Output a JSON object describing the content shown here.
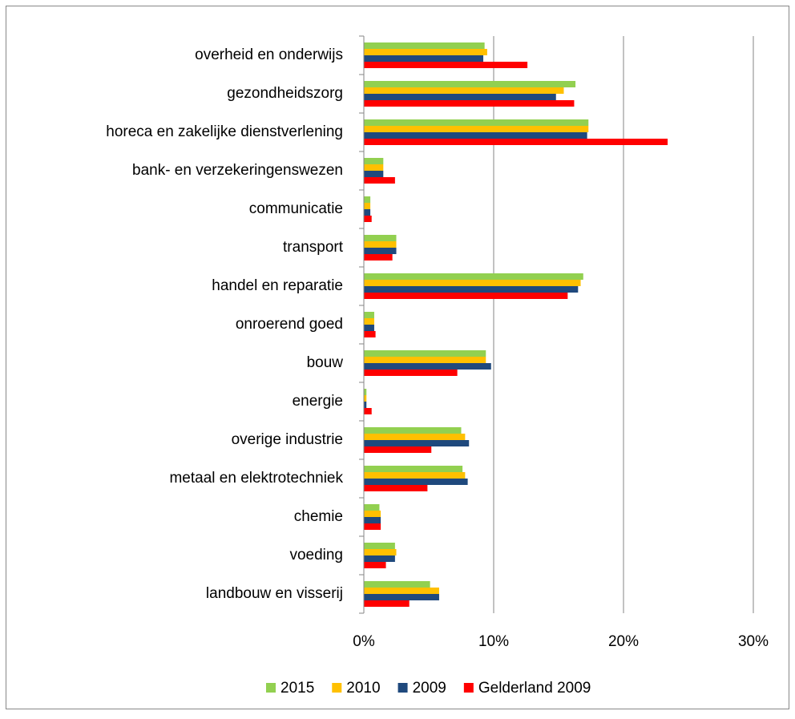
{
  "chart_data": {
    "type": "hbar",
    "categories": [
      "overheid en onderwijs",
      "gezondheidszorg",
      "horeca en zakelijke dienstverlening",
      "bank- en verzekeringenswezen",
      "communicatie",
      "transport",
      "handel en reparatie",
      "onroerend goed",
      "bouw",
      "energie",
      "overige industrie",
      "metaal en elektrotechniek",
      "chemie",
      "voeding",
      "landbouw en visserij"
    ],
    "series": [
      {
        "name": "2015",
        "color": "#92d050",
        "values": [
          9.3,
          16.3,
          17.3,
          1.5,
          0.5,
          2.5,
          16.9,
          0.8,
          9.4,
          0.2,
          7.5,
          7.6,
          1.2,
          2.4,
          5.1
        ]
      },
      {
        "name": "2010",
        "color": "#ffc000",
        "values": [
          9.5,
          15.4,
          17.3,
          1.5,
          0.5,
          2.5,
          16.7,
          0.8,
          9.4,
          0.2,
          7.8,
          7.8,
          1.3,
          2.5,
          5.8
        ]
      },
      {
        "name": "2009",
        "color": "#1f497d",
        "values": [
          9.2,
          14.8,
          17.2,
          1.5,
          0.5,
          2.5,
          16.5,
          0.8,
          9.8,
          0.2,
          8.1,
          8.0,
          1.3,
          2.4,
          5.8
        ]
      },
      {
        "name": "Gelderland 2009",
        "color": "#ff0000",
        "values": [
          12.6,
          16.2,
          23.4,
          2.4,
          0.6,
          2.2,
          15.7,
          0.9,
          7.2,
          0.6,
          5.2,
          4.9,
          1.3,
          1.7,
          3.5
        ]
      }
    ],
    "xlim": [
      0,
      30
    ],
    "xticks": [
      {
        "value": 0,
        "label": "0%"
      },
      {
        "value": 10,
        "label": "10%"
      },
      {
        "value": 20,
        "label": "20%"
      },
      {
        "value": 30,
        "label": "30%"
      }
    ],
    "grid": true,
    "legend": "bottom"
  }
}
